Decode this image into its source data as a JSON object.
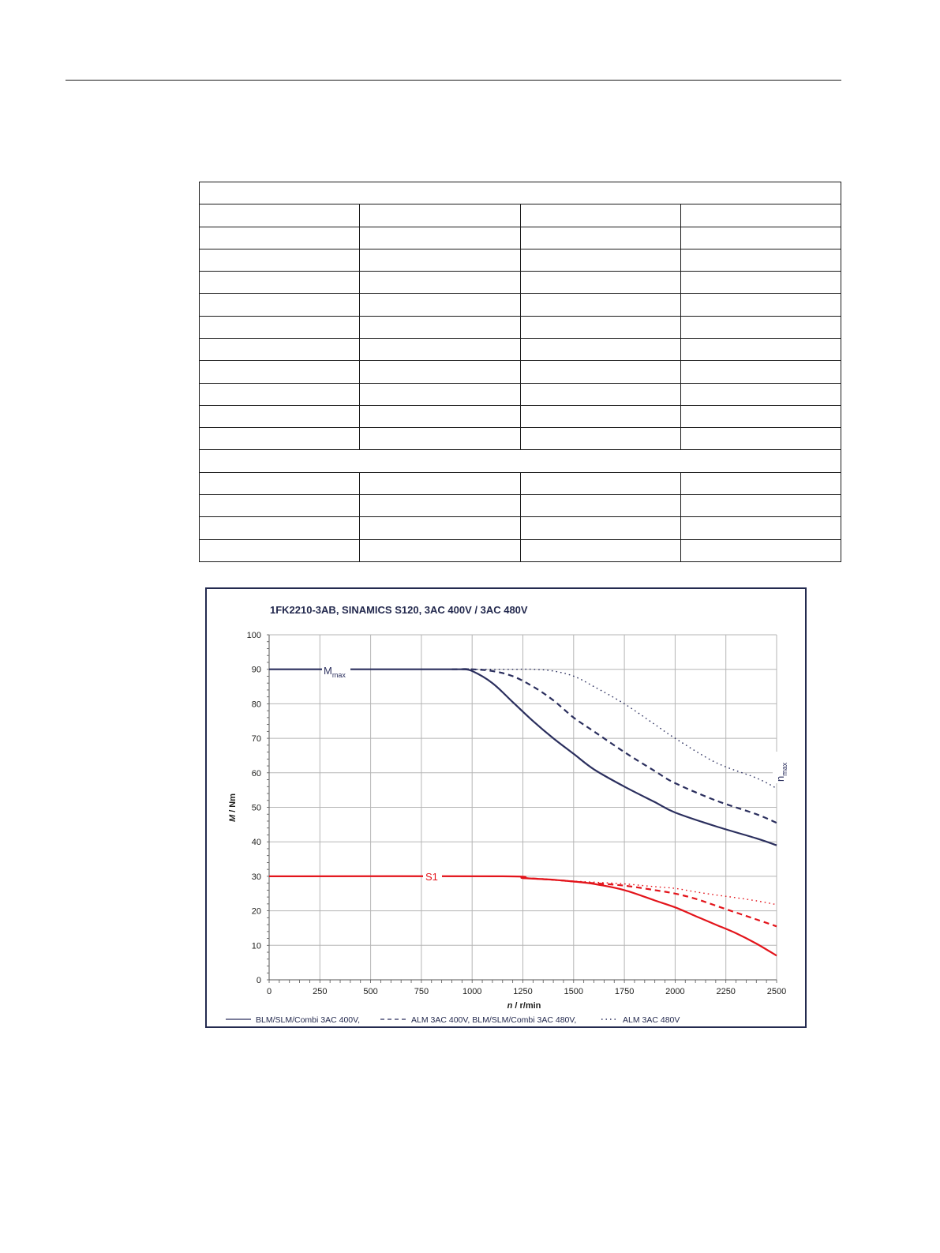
{
  "table": {
    "section_rows": [
      0,
      12
    ],
    "row_count": 17,
    "columns": 4
  },
  "chart_data": {
    "type": "line",
    "title": "1FK2210-3AB,  SINAMICS S120,  3AC 400V / 3AC 480V",
    "xlabel_italic": "n",
    "xlabel_unit": " / r/min",
    "ylabel_italic": "M",
    "ylabel_unit": " / Nm",
    "xlim": [
      0,
      2500
    ],
    "ylim": [
      0,
      100
    ],
    "xticks": [
      0,
      250,
      500,
      750,
      1000,
      1250,
      1500,
      1750,
      2000,
      2250,
      2500
    ],
    "yticks": [
      0,
      10,
      20,
      30,
      40,
      50,
      60,
      70,
      80,
      90,
      100
    ],
    "grid": true,
    "annotations": {
      "mmax": "M",
      "mmax_sub": "max",
      "s1": "S1",
      "nmax": "n",
      "nmax_sub": "max"
    },
    "legend": [
      {
        "label": "BLM/SLM/Combi 3AC 400V,",
        "style": "solid"
      },
      {
        "label": "ALM 3AC 400V, BLM/SLM/Combi 3AC 480V,",
        "style": "dashed"
      },
      {
        "label": "ALM 3AC 480V",
        "style": "dotted"
      }
    ],
    "colors": {
      "navy": "#2b2f5e",
      "red": "#e3141b",
      "grid": "#b5b5b5",
      "frame": "#232a4f"
    },
    "series": [
      {
        "group": "Mmax",
        "style": "solid",
        "color": "#2b2f5e",
        "x": [
          0,
          900,
          950,
          1000,
          1100,
          1200,
          1300,
          1400,
          1500,
          1600,
          1750,
          1900,
          2000,
          2200,
          2400,
          2500
        ],
        "y": [
          90,
          90,
          90,
          89.5,
          86,
          80.5,
          75,
          70,
          65.5,
          61,
          56,
          51.5,
          48.5,
          44.5,
          41,
          39
        ]
      },
      {
        "group": "Mmax",
        "style": "dashed",
        "color": "#2b2f5e",
        "x": [
          900,
          1000,
          1100,
          1200,
          1300,
          1400,
          1500,
          1600,
          1750,
          1900,
          2000,
          2200,
          2400,
          2500
        ],
        "y": [
          90,
          90,
          89.5,
          88,
          85,
          81,
          76,
          72,
          66,
          60.5,
          57,
          52,
          48,
          45.5
        ]
      },
      {
        "group": "Mmax",
        "style": "dotted",
        "color": "#2b2f5e",
        "x": [
          1000,
          1200,
          1300,
          1400,
          1500,
          1600,
          1750,
          1900,
          2000,
          2200,
          2400,
          2500
        ],
        "y": [
          90,
          90,
          90,
          89.5,
          88,
          85,
          80,
          74,
          70,
          63,
          58.5,
          55.5
        ]
      },
      {
        "group": "S1",
        "style": "solid",
        "color": "#e3141b",
        "x": [
          0,
          1150,
          1250,
          1400,
          1500,
          1600,
          1750,
          1900,
          2000,
          2100,
          2200,
          2300,
          2400,
          2500
        ],
        "y": [
          30,
          30,
          29.5,
          29,
          28.5,
          27.8,
          26,
          23,
          21,
          18.5,
          16,
          13.5,
          10.5,
          7
        ]
      },
      {
        "group": "S1",
        "style": "dashed",
        "color": "#e3141b",
        "x": [
          1250,
          1400,
          1500,
          1600,
          1750,
          1900,
          2000,
          2100,
          2200,
          2300,
          2400,
          2500
        ],
        "y": [
          29.5,
          29,
          28.5,
          28,
          27.3,
          26,
          25,
          23.5,
          21.5,
          19.5,
          17.5,
          15.5
        ]
      },
      {
        "group": "S1",
        "style": "dotted",
        "color": "#e3141b",
        "x": [
          1250,
          1400,
          1500,
          1600,
          1750,
          1900,
          2000,
          2100,
          2200,
          2300,
          2400,
          2500
        ],
        "y": [
          29.5,
          29,
          28.6,
          28.3,
          27.8,
          27,
          26.5,
          25.5,
          24.6,
          23.8,
          22.9,
          21.8
        ]
      }
    ]
  }
}
